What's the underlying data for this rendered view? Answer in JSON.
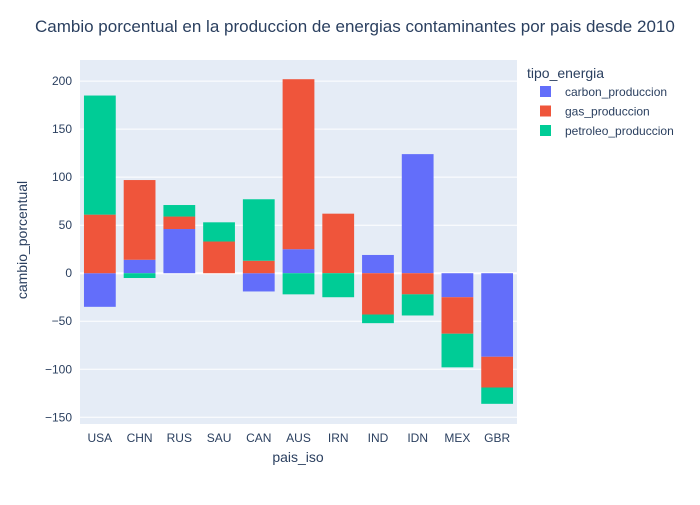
{
  "chart_data": {
    "type": "bar",
    "barmode": "relative",
    "title": "Cambio porcentual en la produccion de energias contaminantes por pais desde 2010",
    "xlabel": "pais_iso",
    "ylabel": "cambio_porcentual",
    "legend_title": "tipo_energia",
    "legend_position": "top-right",
    "grid": true,
    "categories": [
      "USA",
      "CHN",
      "RUS",
      "SAU",
      "CAN",
      "AUS",
      "IRN",
      "IND",
      "IDN",
      "MEX",
      "GBR"
    ],
    "yticks": [
      200,
      150,
      100,
      50,
      0,
      -50,
      -100,
      -150
    ],
    "ylim": [
      -157,
      222
    ],
    "series": [
      {
        "name": "carbon_produccion",
        "color": "#636efa",
        "values": [
          -35,
          14,
          46,
          null,
          -19,
          25,
          null,
          19,
          124,
          -25,
          -87
        ]
      },
      {
        "name": "gas_produccion",
        "color": "#ef553b",
        "values": [
          61,
          83,
          13,
          33,
          13,
          177,
          62,
          -43,
          -22,
          -38,
          -32
        ]
      },
      {
        "name": "petroleo_produccion",
        "color": "#00cc96",
        "values": [
          124,
          -5,
          12,
          20,
          64,
          -22,
          -25,
          -9,
          -22,
          -35,
          -17
        ]
      }
    ]
  }
}
